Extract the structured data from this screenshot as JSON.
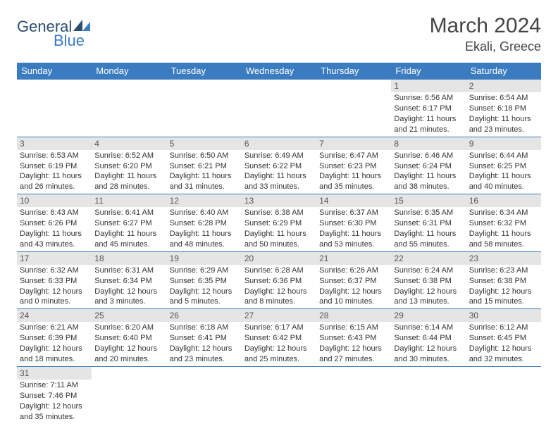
{
  "logo": {
    "line1": "General",
    "line2": "Blue"
  },
  "title": "March 2024",
  "location": "Ekali, Greece",
  "weekdays": [
    "Sunday",
    "Monday",
    "Tuesday",
    "Wednesday",
    "Thursday",
    "Friday",
    "Saturday"
  ],
  "colors": {
    "header_bg": "#3b7bbf",
    "header_text": "#ffffff",
    "daynum_bg": "#e5e5e5",
    "cell_border": "#3b7bbf",
    "logo_dark": "#2b4e6f",
    "logo_light": "#3b7bbf"
  },
  "rows": [
    [
      null,
      null,
      null,
      null,
      null,
      {
        "n": "1",
        "sr": "6:56 AM",
        "ss": "6:17 PM",
        "dl": "11 hours and 21 minutes."
      },
      {
        "n": "2",
        "sr": "6:54 AM",
        "ss": "6:18 PM",
        "dl": "11 hours and 23 minutes."
      }
    ],
    [
      {
        "n": "3",
        "sr": "6:53 AM",
        "ss": "6:19 PM",
        "dl": "11 hours and 26 minutes."
      },
      {
        "n": "4",
        "sr": "6:52 AM",
        "ss": "6:20 PM",
        "dl": "11 hours and 28 minutes."
      },
      {
        "n": "5",
        "sr": "6:50 AM",
        "ss": "6:21 PM",
        "dl": "11 hours and 31 minutes."
      },
      {
        "n": "6",
        "sr": "6:49 AM",
        "ss": "6:22 PM",
        "dl": "11 hours and 33 minutes."
      },
      {
        "n": "7",
        "sr": "6:47 AM",
        "ss": "6:23 PM",
        "dl": "11 hours and 35 minutes."
      },
      {
        "n": "8",
        "sr": "6:46 AM",
        "ss": "6:24 PM",
        "dl": "11 hours and 38 minutes."
      },
      {
        "n": "9",
        "sr": "6:44 AM",
        "ss": "6:25 PM",
        "dl": "11 hours and 40 minutes."
      }
    ],
    [
      {
        "n": "10",
        "sr": "6:43 AM",
        "ss": "6:26 PM",
        "dl": "11 hours and 43 minutes."
      },
      {
        "n": "11",
        "sr": "6:41 AM",
        "ss": "6:27 PM",
        "dl": "11 hours and 45 minutes."
      },
      {
        "n": "12",
        "sr": "6:40 AM",
        "ss": "6:28 PM",
        "dl": "11 hours and 48 minutes."
      },
      {
        "n": "13",
        "sr": "6:38 AM",
        "ss": "6:29 PM",
        "dl": "11 hours and 50 minutes."
      },
      {
        "n": "14",
        "sr": "6:37 AM",
        "ss": "6:30 PM",
        "dl": "11 hours and 53 minutes."
      },
      {
        "n": "15",
        "sr": "6:35 AM",
        "ss": "6:31 PM",
        "dl": "11 hours and 55 minutes."
      },
      {
        "n": "16",
        "sr": "6:34 AM",
        "ss": "6:32 PM",
        "dl": "11 hours and 58 minutes."
      }
    ],
    [
      {
        "n": "17",
        "sr": "6:32 AM",
        "ss": "6:33 PM",
        "dl": "12 hours and 0 minutes."
      },
      {
        "n": "18",
        "sr": "6:31 AM",
        "ss": "6:34 PM",
        "dl": "12 hours and 3 minutes."
      },
      {
        "n": "19",
        "sr": "6:29 AM",
        "ss": "6:35 PM",
        "dl": "12 hours and 5 minutes."
      },
      {
        "n": "20",
        "sr": "6:28 AM",
        "ss": "6:36 PM",
        "dl": "12 hours and 8 minutes."
      },
      {
        "n": "21",
        "sr": "6:26 AM",
        "ss": "6:37 PM",
        "dl": "12 hours and 10 minutes."
      },
      {
        "n": "22",
        "sr": "6:24 AM",
        "ss": "6:38 PM",
        "dl": "12 hours and 13 minutes."
      },
      {
        "n": "23",
        "sr": "6:23 AM",
        "ss": "6:38 PM",
        "dl": "12 hours and 15 minutes."
      }
    ],
    [
      {
        "n": "24",
        "sr": "6:21 AM",
        "ss": "6:39 PM",
        "dl": "12 hours and 18 minutes."
      },
      {
        "n": "25",
        "sr": "6:20 AM",
        "ss": "6:40 PM",
        "dl": "12 hours and 20 minutes."
      },
      {
        "n": "26",
        "sr": "6:18 AM",
        "ss": "6:41 PM",
        "dl": "12 hours and 23 minutes."
      },
      {
        "n": "27",
        "sr": "6:17 AM",
        "ss": "6:42 PM",
        "dl": "12 hours and 25 minutes."
      },
      {
        "n": "28",
        "sr": "6:15 AM",
        "ss": "6:43 PM",
        "dl": "12 hours and 27 minutes."
      },
      {
        "n": "29",
        "sr": "6:14 AM",
        "ss": "6:44 PM",
        "dl": "12 hours and 30 minutes."
      },
      {
        "n": "30",
        "sr": "6:12 AM",
        "ss": "6:45 PM",
        "dl": "12 hours and 32 minutes."
      }
    ],
    [
      {
        "n": "31",
        "sr": "7:11 AM",
        "ss": "7:46 PM",
        "dl": "12 hours and 35 minutes."
      },
      null,
      null,
      null,
      null,
      null,
      null
    ]
  ],
  "labels": {
    "sunrise": "Sunrise:",
    "sunset": "Sunset:",
    "daylight": "Daylight:"
  }
}
